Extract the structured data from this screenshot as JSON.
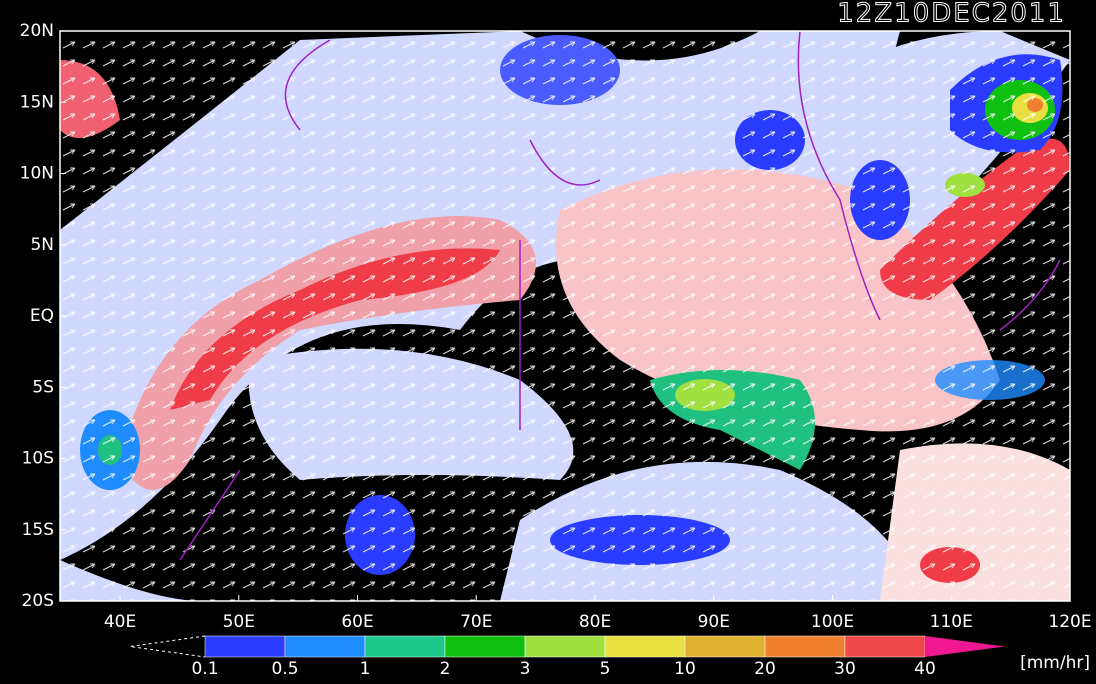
{
  "title": "12Z10DEC2011",
  "lat_labels": [
    "20N",
    "15N",
    "10N",
    "5N",
    "EQ",
    "5S",
    "10S",
    "15S",
    "20S"
  ],
  "lon_labels": [
    "40E",
    "50E",
    "60E",
    "70E",
    "80E",
    "90E",
    "100E",
    "110E",
    "120E"
  ],
  "colorbar": {
    "labels": [
      "0.1",
      "0.5",
      "1",
      "2",
      "3",
      "5",
      "10",
      "20",
      "30",
      "40"
    ],
    "colors": [
      "#2a3cff",
      "#1e8cff",
      "#1ec88c",
      "#10c010",
      "#a0e040",
      "#e8e040",
      "#e0b030",
      "#f08030",
      "#f04848",
      "#f01890"
    ],
    "unit": "[mm/hr]"
  }
}
